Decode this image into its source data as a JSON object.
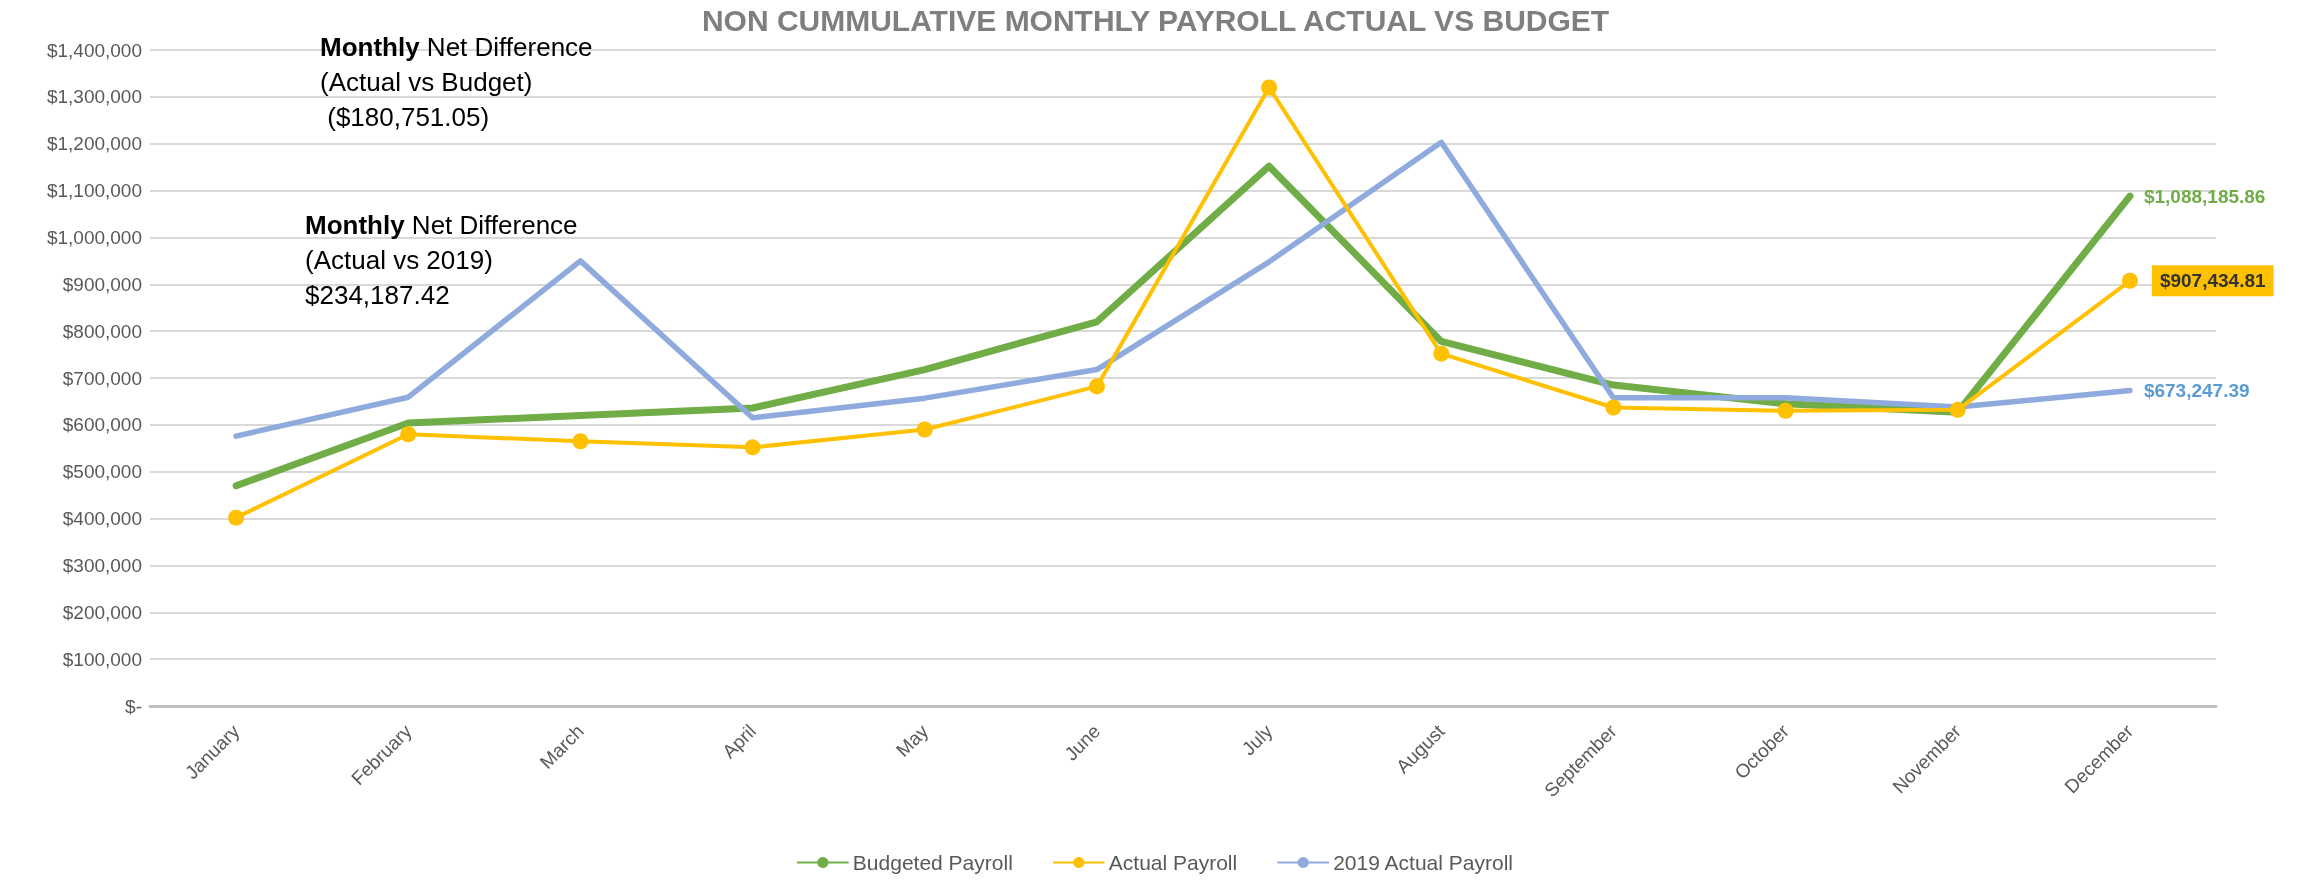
{
  "chart_data": {
    "type": "line",
    "title": "NON CUMMULATIVE MONTHLY PAYROLL ACTUAL VS BUDGET",
    "categories": [
      "January",
      "February",
      "March",
      "April",
      "May",
      "June",
      "July",
      "August",
      "September",
      "October",
      "November",
      "December"
    ],
    "series": [
      {
        "name": "Budgeted Payroll",
        "color": "#70ad47",
        "marker": "none",
        "values": [
          470000,
          604000,
          620000,
          636000,
          718000,
          820000,
          1152000,
          778000,
          685000,
          645000,
          627000,
          1088185.86
        ],
        "value_labels": [
          null,
          null,
          null,
          null,
          null,
          null,
          null,
          null,
          null,
          null,
          null,
          "$1,088,185.86"
        ]
      },
      {
        "name": "Actual Payroll",
        "color": "#ffc000",
        "marker": "circle",
        "values": [
          402000,
          580000,
          565000,
          552000,
          590000,
          682000,
          1320000,
          752000,
          637000,
          630000,
          632000,
          907434.81
        ],
        "value_labels": [
          null,
          null,
          null,
          null,
          null,
          null,
          null,
          null,
          null,
          null,
          null,
          "$907,434.81"
        ]
      },
      {
        "name": "2019 Actual Payroll",
        "color": "#8faadc",
        "marker": "none",
        "values": [
          576000,
          659000,
          950000,
          615000,
          657000,
          718000,
          948000,
          1203000,
          658000,
          658000,
          638000,
          673247.39
        ],
        "value_labels": [
          null,
          null,
          null,
          null,
          null,
          null,
          null,
          null,
          null,
          null,
          null,
          "$673,247.39"
        ]
      }
    ],
    "ylim": [
      0,
      1400000
    ],
    "yticks": [
      {
        "value": 0,
        "label": "$-"
      },
      {
        "value": 100000,
        "label": "$100,000"
      },
      {
        "value": 200000,
        "label": "$200,000"
      },
      {
        "value": 300000,
        "label": "$300,000"
      },
      {
        "value": 400000,
        "label": "$400,000"
      },
      {
        "value": 500000,
        "label": "$500,000"
      },
      {
        "value": 600000,
        "label": "$600,000"
      },
      {
        "value": 700000,
        "label": "$700,000"
      },
      {
        "value": 800000,
        "label": "$800,000"
      },
      {
        "value": 900000,
        "label": "$900,000"
      },
      {
        "value": 1000000,
        "label": "$1,000,000"
      },
      {
        "value": 1100000,
        "label": "$1,100,000"
      },
      {
        "value": 1200000,
        "label": "$1,200,000"
      },
      {
        "value": 1300000,
        "label": "$1,300,000"
      },
      {
        "value": 1400000,
        "label": "$1,400,000"
      }
    ],
    "annotations": [
      "Monthly Net Difference\n(Actual vs Budget)\n ($180,751.05)",
      "Monthly Net Difference\n(Actual vs 2019)\n$234,187.42"
    ],
    "grid": "y",
    "legend": "bottom",
    "line_style": "solid"
  }
}
